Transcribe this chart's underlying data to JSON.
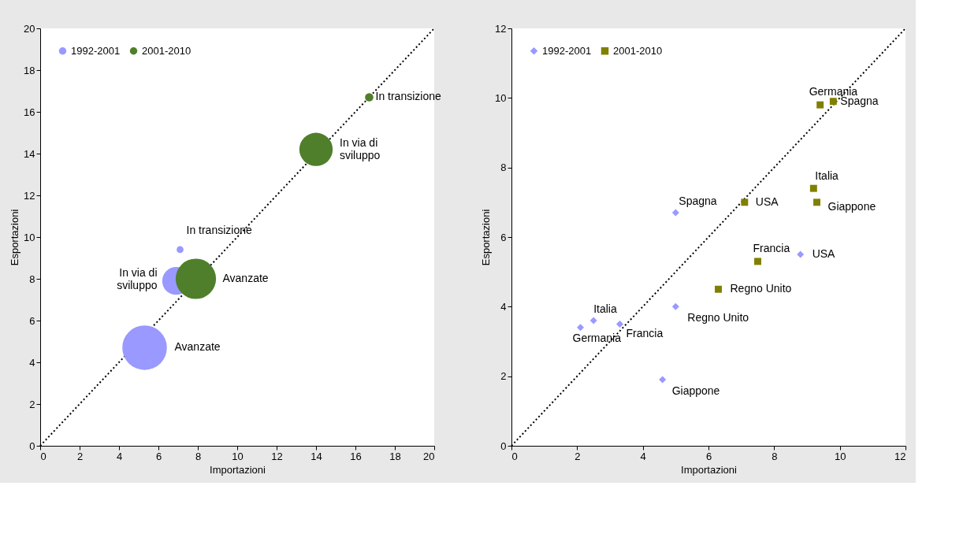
{
  "chart_data": [
    {
      "type": "bubble",
      "xlabel": "Importazioni",
      "ylabel": "Esportazioni",
      "xlim": [
        0,
        20
      ],
      "ylim": [
        0,
        20
      ],
      "xticks": [
        0,
        2,
        4,
        6,
        8,
        10,
        12,
        14,
        16,
        18,
        20
      ],
      "yticks": [
        0,
        2,
        4,
        6,
        8,
        10,
        12,
        14,
        16,
        18,
        20
      ],
      "legend": "top left",
      "grid": false,
      "series": [
        {
          "name": "1992-2001",
          "color": "#9999ff",
          "marker": "circle",
          "x": [
            5.3,
            6.9,
            7.1
          ],
          "values": [
            4.7,
            7.9,
            9.4
          ],
          "sizes": [
            1,
            0.39,
            0.024
          ]
        },
        {
          "name": "2001-2010",
          "color": "#4f7f2a",
          "marker": "circle",
          "x": [
            7.9,
            14.0,
            16.7
          ],
          "values": [
            8.0,
            14.2,
            16.7
          ],
          "sizes": [
            0.82,
            0.56,
            0.035
          ]
        },
        {
          "type": "line",
          "color": "#000000",
          "line_style": "dotted",
          "x": [
            0,
            20
          ],
          "values": [
            0,
            20
          ]
        }
      ],
      "annotations": [
        {
          "text": "Avanzate",
          "x": 5.3,
          "y": 4.7
        },
        {
          "text": "In via di\nsviluppo",
          "x": 6.9,
          "y": 7.9
        },
        {
          "text": "In transizione",
          "x": 7.1,
          "y": 9.4
        },
        {
          "text": "Avanzate",
          "x": 7.9,
          "y": 8.0
        },
        {
          "text": "In via di\nsviluppo",
          "x": 14.0,
          "y": 14.2
        },
        {
          "text": "In transizione",
          "x": 16.7,
          "y": 16.7
        }
      ]
    },
    {
      "type": "scatter",
      "xlabel": "Importazioni",
      "ylabel": "Esportazioni",
      "xlim": [
        0,
        12
      ],
      "ylim": [
        0,
        12
      ],
      "xticks": [
        0,
        2,
        4,
        6,
        8,
        10,
        12
      ],
      "yticks": [
        0,
        2,
        4,
        6,
        8,
        10,
        12
      ],
      "legend": "top left",
      "grid": false,
      "series": [
        {
          "name": "1992-2001",
          "color": "#9999ff",
          "marker": "diamond",
          "x": [
            2.1,
            2.5,
            3.3,
            4.6,
            5.0,
            5.0,
            8.8
          ],
          "values": [
            3.4,
            3.6,
            3.5,
            1.9,
            4.0,
            6.7,
            5.5
          ]
        },
        {
          "name": "2001-2010",
          "color": "#808000",
          "marker": "square",
          "x": [
            9.4,
            9.8,
            9.2,
            9.3,
            7.1,
            7.5,
            6.3
          ],
          "values": [
            9.8,
            9.9,
            7.4,
            7.0,
            7.0,
            5.3,
            4.5
          ]
        },
        {
          "type": "line",
          "color": "#000000",
          "line_style": "dotted",
          "x": [
            0,
            12
          ],
          "values": [
            0,
            12
          ]
        }
      ],
      "annotations": [
        {
          "text": "Germania",
          "x": 2.1,
          "y": 3.4
        },
        {
          "text": "Italia",
          "x": 2.5,
          "y": 3.6
        },
        {
          "text": "Francia",
          "x": 3.3,
          "y": 3.5
        },
        {
          "text": "Giappone",
          "x": 4.6,
          "y": 1.9
        },
        {
          "text": "Regno Unito",
          "x": 5.0,
          "y": 4.0
        },
        {
          "text": "Spagna",
          "x": 5.0,
          "y": 6.7
        },
        {
          "text": "USA",
          "x": 8.8,
          "y": 5.5
        },
        {
          "text": "Germania",
          "x": 9.4,
          "y": 9.8
        },
        {
          "text": "Spagna",
          "x": 9.8,
          "y": 9.9
        },
        {
          "text": "Italia",
          "x": 9.2,
          "y": 7.4
        },
        {
          "text": "Giappone",
          "x": 9.3,
          "y": 7.0
        },
        {
          "text": "USA",
          "x": 7.1,
          "y": 7.0
        },
        {
          "text": "Francia",
          "x": 7.5,
          "y": 5.3
        },
        {
          "text": "Regno Unito",
          "x": 6.3,
          "y": 4.5
        }
      ]
    }
  ]
}
